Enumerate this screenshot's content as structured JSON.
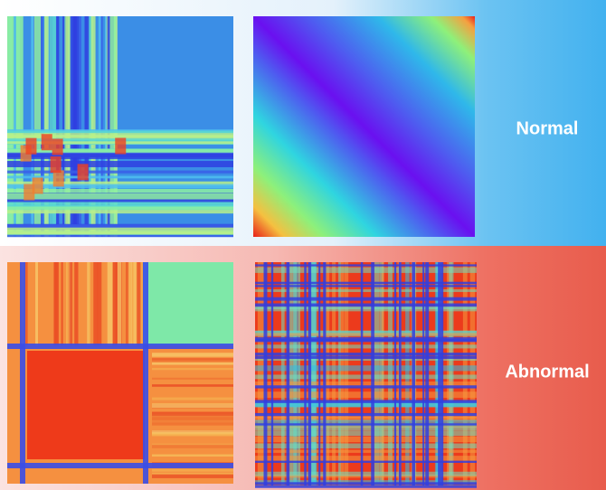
{
  "rows": [
    {
      "label": "Normal"
    },
    {
      "label": "Abnormal"
    }
  ]
}
